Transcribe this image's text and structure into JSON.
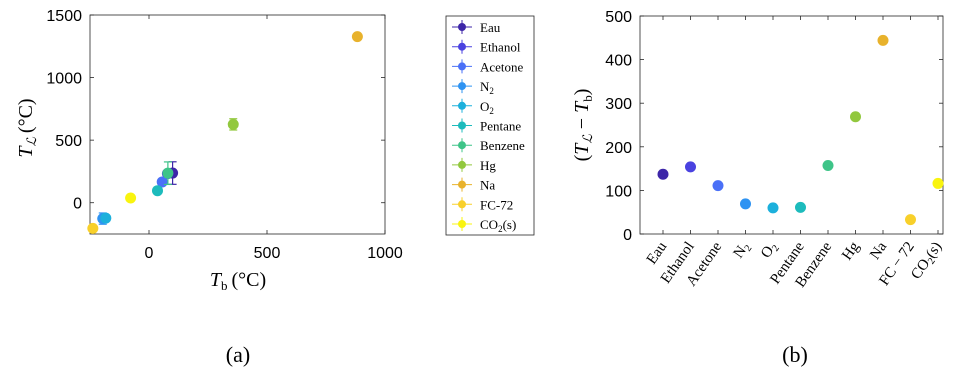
{
  "colors": {
    "Eau": "#3d26a8",
    "Ethanol": "#4a42e0",
    "Acetone": "#4a70f7",
    "N2": "#2e93f2",
    "O2": "#1cb0dc",
    "Pentane": "#1dbbbc",
    "Benzene": "#3ec488",
    "Hg": "#92c83e",
    "Na": "#e8b22c",
    "FC-72": "#f8d02a",
    "CO2(s)": "#f9f40f"
  },
  "chart_data": [
    {
      "type": "scatter",
      "panel_label": "(a)",
      "xlabel": "T_b (°C)",
      "ylabel": "T_L (°C)",
      "xlim": [
        -250,
        1000
      ],
      "ylim": [
        -250,
        1500
      ],
      "xticks": [
        "0",
        "500",
        "1000"
      ],
      "yticks": [
        "0",
        "500",
        "1000",
        "1500"
      ],
      "legend_position": "outside-right",
      "series": [
        {
          "name": "Eau",
          "x": 100,
          "y": 237,
          "yerr": 90,
          "xerr": 20
        },
        {
          "name": "Ethanol",
          "x": 78,
          "y": 232
        },
        {
          "name": "Acetone",
          "x": 56,
          "y": 166
        },
        {
          "name": "N2",
          "x": -196,
          "y": -127,
          "yerr": 45
        },
        {
          "name": "O2",
          "x": -183,
          "y": -123
        },
        {
          "name": "Pentane",
          "x": 36,
          "y": 96
        },
        {
          "name": "Benzene",
          "x": 80,
          "y": 236,
          "yerr": 90
        },
        {
          "name": "Hg",
          "x": 357,
          "y": 626,
          "yerr": 45
        },
        {
          "name": "Na",
          "x": 883,
          "y": 1327
        },
        {
          "name": "FC-72",
          "x": -238,
          "y": -205
        },
        {
          "name": "CO2(s)",
          "x": -78,
          "y": 38
        }
      ],
      "legend": [
        "Eau",
        "Ethanol",
        "Acetone",
        "N2",
        "O2",
        "Pentane",
        "Benzene",
        "Hg",
        "Na",
        "FC-72",
        "CO2(s)"
      ]
    },
    {
      "type": "scatter",
      "panel_label": "(b)",
      "ylabel": "(T_L − T_b)",
      "ylim": [
        0,
        500
      ],
      "yticks": [
        "0",
        "100",
        "200",
        "300",
        "400",
        "500"
      ],
      "categories": [
        "Eau",
        "Ethanol",
        "Acetone",
        "N2",
        "O2",
        "Pentane",
        "Benzene",
        "Hg",
        "Na",
        "FC − 72",
        "CO2(s)"
      ],
      "values": [
        137,
        154,
        111,
        69,
        60,
        61,
        157,
        269,
        444,
        33,
        116
      ]
    }
  ]
}
